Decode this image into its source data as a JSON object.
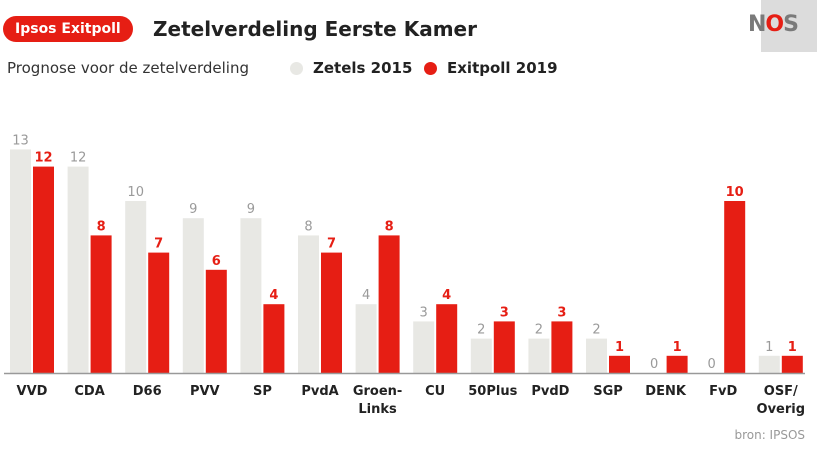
{
  "header": {
    "badge": "Ipsos Exitpoll",
    "title": "Zetelverdeling Eerste Kamer",
    "subtitle": "Prognose voor de zetelverdeling",
    "logo": {
      "n": "N",
      "o": "O",
      "s": "S"
    }
  },
  "legend": [
    {
      "label": "Zetels 2015",
      "color": "#e8e8e4"
    },
    {
      "label": "Exitpoll 2019",
      "color": "#e61e14"
    }
  ],
  "source": "bron: IPSOS",
  "chart_data": {
    "type": "bar",
    "title": "Zetelverdeling Eerste Kamer",
    "subtitle": "Prognose voor de zetelverdeling",
    "xlabel": "",
    "ylabel": "",
    "ylim": [
      0,
      13
    ],
    "grid": false,
    "legend_position": "top",
    "categories": [
      "VVD",
      "CDA",
      "D66",
      "PVV",
      "SP",
      "PvdA",
      "Groen-\nLinks",
      "CU",
      "50Plus",
      "PvdD",
      "SGP",
      "DENK",
      "FvD",
      "OSF/\nOverig"
    ],
    "series": [
      {
        "name": "Zetels 2015",
        "color": "#e8e8e4",
        "label_color": "#9a9a9a",
        "values": [
          13,
          12,
          10,
          9,
          9,
          8,
          4,
          3,
          2,
          2,
          2,
          0,
          0,
          1
        ]
      },
      {
        "name": "Exitpoll 2019",
        "color": "#e61e14",
        "label_color": "#e61e14",
        "values": [
          12,
          8,
          7,
          6,
          4,
          7,
          8,
          4,
          3,
          3,
          1,
          1,
          10,
          1
        ]
      }
    ]
  }
}
